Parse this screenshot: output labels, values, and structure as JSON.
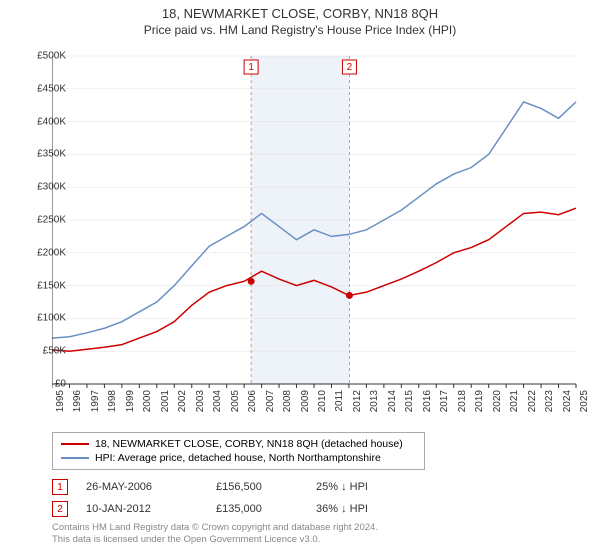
{
  "title": "18, NEWMARKET CLOSE, CORBY, NN18 8QH",
  "subtitle": "Price paid vs. HM Land Registry's House Price Index (HPI)",
  "chart": {
    "type": "line",
    "background_color": "#ffffff",
    "grid_color": "#e0e0e0",
    "axis_color": "#333333",
    "x_years": [
      1995,
      1996,
      1997,
      1998,
      1999,
      2000,
      2001,
      2002,
      2003,
      2004,
      2005,
      2006,
      2007,
      2008,
      2009,
      2010,
      2011,
      2012,
      2013,
      2014,
      2015,
      2016,
      2017,
      2018,
      2019,
      2020,
      2021,
      2022,
      2023,
      2024,
      2025
    ],
    "y_ticks": [
      0,
      50000,
      100000,
      150000,
      200000,
      250000,
      300000,
      350000,
      400000,
      450000,
      500000
    ],
    "y_tick_labels": [
      "£0",
      "£50K",
      "£100K",
      "£150K",
      "£200K",
      "£250K",
      "£300K",
      "£350K",
      "£400K",
      "£450K",
      "£500K"
    ],
    "ylim": [
      0,
      500000
    ],
    "shaded_band": {
      "from_year": 2006.4,
      "to_year": 2012.03,
      "color": "#eef2f9"
    },
    "series": [
      {
        "name": "property",
        "color": "#cc0000",
        "line_width": 1.5,
        "data": [
          [
            1995,
            52000
          ],
          [
            1996,
            50000
          ],
          [
            1997,
            53000
          ],
          [
            1998,
            56000
          ],
          [
            1999,
            60000
          ],
          [
            2000,
            70000
          ],
          [
            2001,
            80000
          ],
          [
            2002,
            95000
          ],
          [
            2003,
            120000
          ],
          [
            2004,
            140000
          ],
          [
            2005,
            150000
          ],
          [
            2006,
            156500
          ],
          [
            2007,
            172000
          ],
          [
            2008,
            160000
          ],
          [
            2009,
            150000
          ],
          [
            2010,
            158000
          ],
          [
            2011,
            148000
          ],
          [
            2012,
            135000
          ],
          [
            2013,
            140000
          ],
          [
            2014,
            150000
          ],
          [
            2015,
            160000
          ],
          [
            2016,
            172000
          ],
          [
            2017,
            185000
          ],
          [
            2018,
            200000
          ],
          [
            2019,
            208000
          ],
          [
            2020,
            220000
          ],
          [
            2021,
            240000
          ],
          [
            2022,
            260000
          ],
          [
            2023,
            262000
          ],
          [
            2024,
            258000
          ],
          [
            2025,
            268000
          ]
        ]
      },
      {
        "name": "hpi",
        "color": "#6a8fc5",
        "line_width": 1.5,
        "data": [
          [
            1995,
            70000
          ],
          [
            1996,
            72000
          ],
          [
            1997,
            78000
          ],
          [
            1998,
            85000
          ],
          [
            1999,
            95000
          ],
          [
            2000,
            110000
          ],
          [
            2001,
            125000
          ],
          [
            2002,
            150000
          ],
          [
            2003,
            180000
          ],
          [
            2004,
            210000
          ],
          [
            2005,
            225000
          ],
          [
            2006,
            240000
          ],
          [
            2007,
            260000
          ],
          [
            2008,
            240000
          ],
          [
            2009,
            220000
          ],
          [
            2010,
            235000
          ],
          [
            2011,
            225000
          ],
          [
            2012,
            228000
          ],
          [
            2013,
            235000
          ],
          [
            2014,
            250000
          ],
          [
            2015,
            265000
          ],
          [
            2016,
            285000
          ],
          [
            2017,
            305000
          ],
          [
            2018,
            320000
          ],
          [
            2019,
            330000
          ],
          [
            2020,
            350000
          ],
          [
            2021,
            390000
          ],
          [
            2022,
            430000
          ],
          [
            2023,
            420000
          ],
          [
            2024,
            405000
          ],
          [
            2025,
            430000
          ]
        ]
      }
    ],
    "event_lines": [
      {
        "label": "1",
        "year": 2006.4,
        "dash": "3,3",
        "color": "#cc9999"
      },
      {
        "label": "2",
        "year": 2012.03,
        "dash": "3,3",
        "color": "#cc9999"
      }
    ],
    "sale_markers": [
      {
        "year": 2006.4,
        "value": 156500,
        "color": "#cc0000"
      },
      {
        "year": 2012.03,
        "value": 135000,
        "color": "#cc0000"
      }
    ],
    "label_fontsize": 10
  },
  "legend": {
    "items": [
      {
        "color": "#cc0000",
        "label": "18, NEWMARKET CLOSE, CORBY, NN18 8QH (detached house)"
      },
      {
        "color": "#6a8fc5",
        "label": "HPI: Average price, detached house, North Northamptonshire"
      }
    ]
  },
  "sales": [
    {
      "num": "1",
      "date": "26-MAY-2006",
      "price": "£156,500",
      "delta": "25% ↓ HPI"
    },
    {
      "num": "2",
      "date": "10-JAN-2012",
      "price": "£135,000",
      "delta": "36% ↓ HPI"
    }
  ],
  "footer": {
    "line1": "Contains HM Land Registry data © Crown copyright and database right 2024.",
    "line2": "This data is licensed under the Open Government Licence v3.0."
  }
}
